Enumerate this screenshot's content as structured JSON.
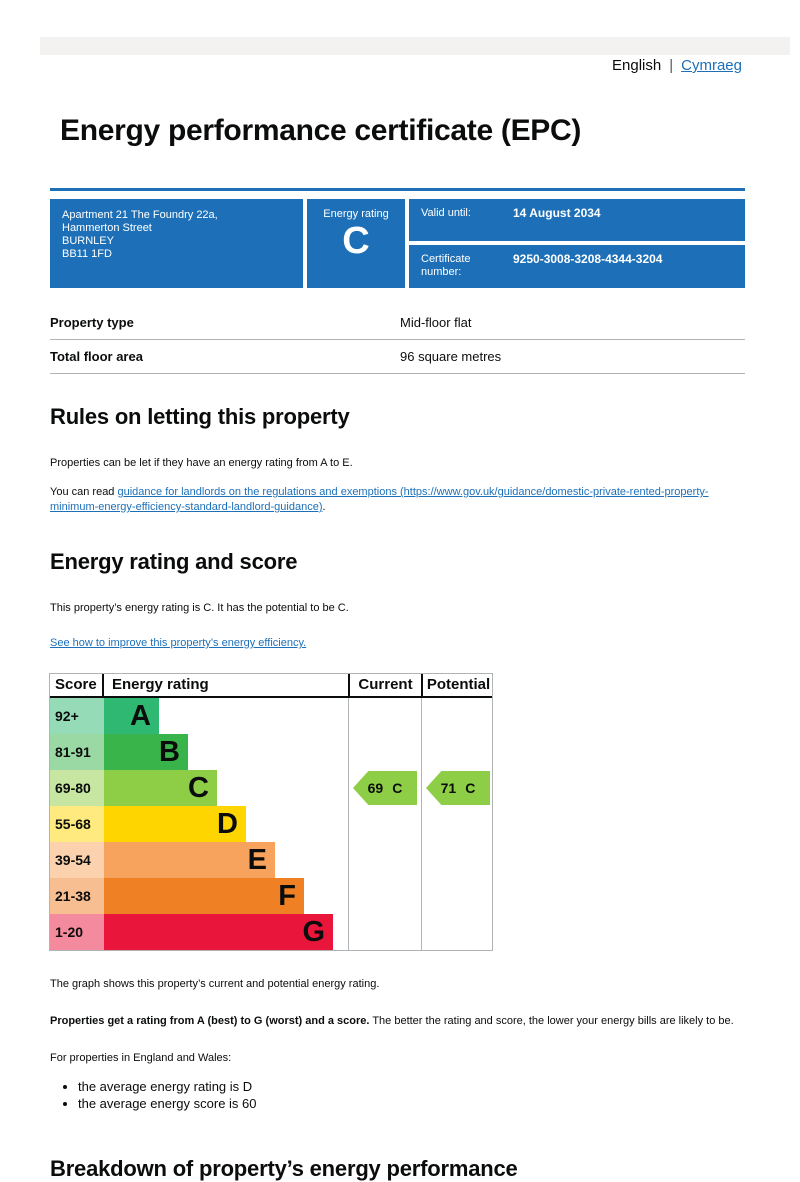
{
  "page": {
    "language_bar": {
      "english": "English",
      "divider": "|",
      "welsh": "Cymraeg"
    },
    "title": "Energy performance certificate (EPC)"
  },
  "certificate": {
    "address_lines": [
      "Apartment 21 The Foundry 22a,",
      "Hammerton Street",
      "BURNLEY",
      "BB11 1FD"
    ],
    "energy_rating_label": "Energy rating",
    "energy_rating": "C",
    "valid_until_label": "Valid until:",
    "valid_until": "14 August 2034",
    "certificate_number_label": "Certificate number:",
    "certificate_number": "9250-3008-3208-4344-3204"
  },
  "summary": {
    "rows": [
      {
        "label": "Property type",
        "value": "Mid-floor flat"
      },
      {
        "label": "Total floor area",
        "value": "96 square metres"
      }
    ]
  },
  "rules_section": {
    "heading": "Rules on letting this property",
    "paragraph1": "Properties can be let if they have an energy rating from A to E.",
    "paragraph2_prefix": "You can read ",
    "link_text": "guidance for landlords on the regulations and exemptions (https://www.gov.uk/guidance/domestic-private-rented-property-minimum-energy-efficiency-standard-landlord-guidance)",
    "paragraph2_suffix": "."
  },
  "rating_section": {
    "heading": "Energy rating and score",
    "paragraph": "This property’s energy rating is C. It has the potential to be C.",
    "improve_link": "See how to improve this property’s energy efficiency."
  },
  "chart_data": {
    "type": "bar",
    "title": "Energy rating and score (EPC band chart)",
    "columns": [
      "Score",
      "Energy rating",
      "Current",
      "Potential"
    ],
    "bands": [
      {
        "letter": "A",
        "score_range": "92+",
        "color": "#2eb872",
        "tint": "#96dbb8"
      },
      {
        "letter": "B",
        "score_range": "81-91",
        "color": "#38b44a",
        "tint": "#9bd9a4"
      },
      {
        "letter": "C",
        "score_range": "69-80",
        "color": "#8dce46",
        "tint": "#c6e6a2"
      },
      {
        "letter": "D",
        "score_range": "55-68",
        "color": "#ffd500",
        "tint": "#ffea7f"
      },
      {
        "letter": "E",
        "score_range": "39-54",
        "color": "#f8a35d",
        "tint": "#fbd1ae"
      },
      {
        "letter": "F",
        "score_range": "21-38",
        "color": "#ef8023",
        "tint": "#f7bf91"
      },
      {
        "letter": "G",
        "score_range": "1-20",
        "color": "#e9153b",
        "tint": "#f48a9d"
      }
    ],
    "current": {
      "score": "69",
      "band": "C",
      "row_index": 2
    },
    "potential": {
      "score": "71",
      "band": "C",
      "row_index": 2
    },
    "arrow_color": "#8dce46",
    "legend_position": "none",
    "grid": false
  },
  "chart_notes": {
    "caption": "The graph shows this property’s current and potential energy rating.",
    "bold_lead": "Properties get a rating from A (best) to G (worst) and a score.",
    "bold_rest": " The better the rating and score, the lower your energy bills are likely to be.",
    "region_intro": "For properties in England and Wales:",
    "bullets": [
      "the average energy rating is D",
      "the average energy score is 60"
    ]
  },
  "breakdown_section": {
    "heading": "Breakdown of property’s energy performance"
  },
  "colors": {
    "govuk_blue": "#1d70b8",
    "link": "#1d70b8",
    "border_gray": "#b1b4b6",
    "topbar_gray": "#f3f2f1",
    "text": "#0b0c0c"
  }
}
